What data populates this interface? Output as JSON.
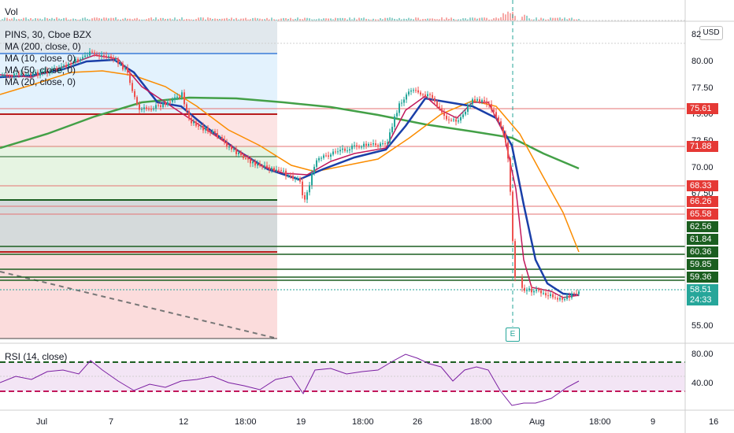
{
  "volume_pane": {
    "label": "Vol"
  },
  "legend": {
    "symbol": "PINS, 30, Cboe BZX",
    "indicators": [
      "MA (200, close, 0)",
      "MA (10, close, 0)",
      "MA (50, close, 0)",
      "MA (20, close, 0)"
    ]
  },
  "rsi_pane": {
    "label": "RSI (14, close)",
    "ticks": [
      "80.00",
      "40.00"
    ]
  },
  "price_axis": {
    "currency_button": "USD",
    "ticks": [
      "82",
      "80.00",
      "77.50",
      "75.00",
      "72.50",
      "70.00",
      "67.50",
      "55.00"
    ]
  },
  "price_labels": [
    {
      "text": "75.61",
      "color": "#e53935"
    },
    {
      "text": "71.88",
      "color": "#e53935"
    },
    {
      "text": "68.33",
      "color": "#e53935"
    },
    {
      "text": "66.26",
      "color": "#e53935"
    },
    {
      "text": "65.58",
      "color": "#e53935"
    },
    {
      "text": "62.56",
      "color": "#1b5e20"
    },
    {
      "text": "61.84",
      "color": "#1b5e20"
    },
    {
      "text": "60.36",
      "color": "#1b5e20"
    },
    {
      "text": "59.85",
      "color": "#1b5e20"
    },
    {
      "text": "59.36",
      "color": "#1b5e20"
    },
    {
      "text": "58.51",
      "color": "#26a69a"
    },
    {
      "text": "24:33",
      "color": "#26a69a"
    }
  ],
  "time_axis": {
    "ticks": [
      "Jul",
      "7",
      "12",
      "18:00",
      "19",
      "18:00",
      "26",
      "18:00",
      "Aug",
      "18:00",
      "9",
      "16"
    ]
  },
  "event_marker": {
    "label": "E"
  },
  "colors": {
    "ma200": "#43a047",
    "ma10": "#c2185b",
    "ma50": "#fb8c00",
    "ma20": "#1a3fa8",
    "candle_up": "#26a69a",
    "candle_down": "#ef5350",
    "rsi_band": "#e1bee7"
  }
}
